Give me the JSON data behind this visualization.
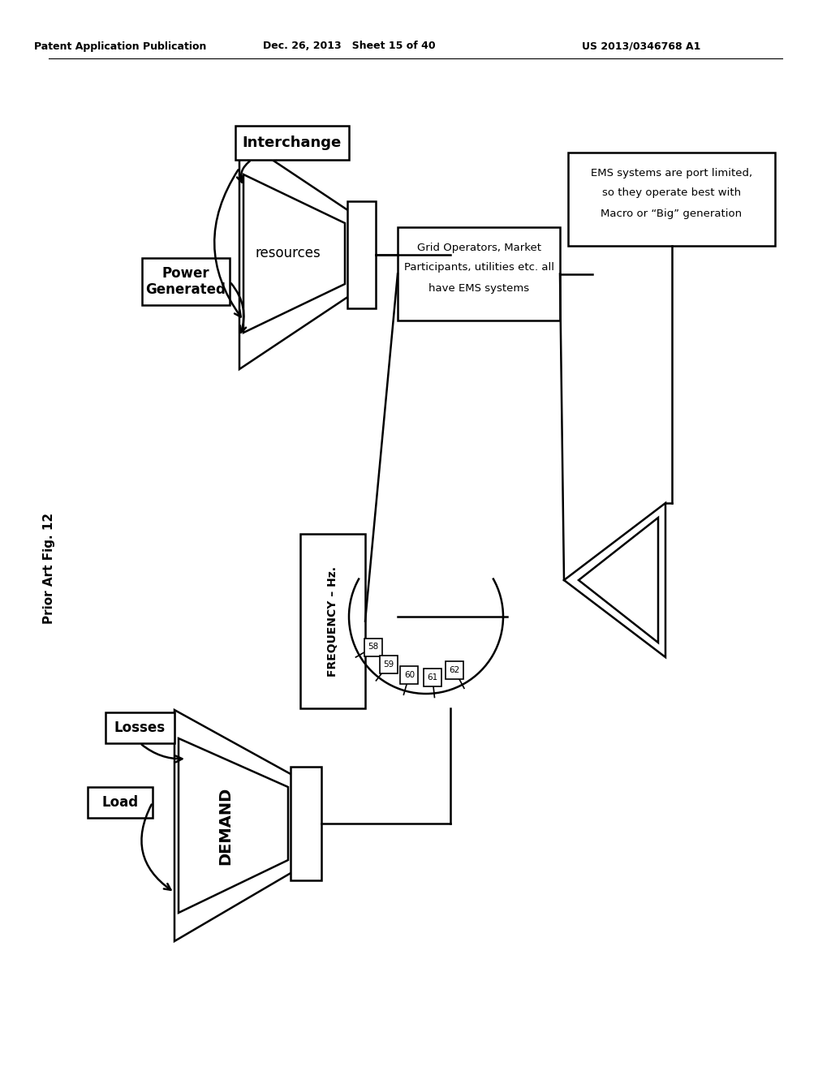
{
  "bg": "#ffffff",
  "header_left": "Patent Application Publication",
  "header_mid": "Dec. 26, 2013   Sheet 15 of 40",
  "header_right": "US 2013/0346768 A1",
  "side_label": "Prior Art Fig. 12",
  "resources_label": "resources",
  "demand_label": "DEMAND",
  "freq_label": "FREQUENCY – Hz.",
  "interchange_label": "Interchange",
  "power_gen_1": "Power",
  "power_gen_2": "Generated",
  "load_label": "Load",
  "losses_label": "Losses",
  "grid_ops_1": "Grid Operators, Market",
  "grid_ops_2": "Participants, utilities etc. all",
  "grid_ops_3": "have EMS systems",
  "ems_1": "EMS systems are port limited,",
  "ems_2": "so they operate best with",
  "ems_3": "Macro or “Big” generation",
  "freq_ticks": [
    "58",
    "59",
    "60",
    "61",
    "62"
  ]
}
